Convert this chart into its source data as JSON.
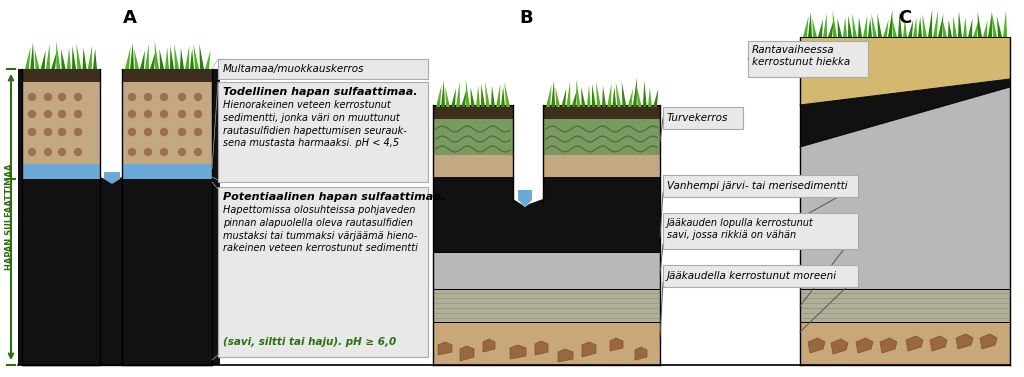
{
  "title_A": "A",
  "title_B": "B",
  "title_C": "C",
  "bg_color": "#ffffff",
  "label_hapan": "HAPAN SULFAATTIMAA",
  "labels": {
    "multamaa": "Multamaa/muokkauskerros",
    "todellinen_title": "Todellinen hapan sulfaattimaa.",
    "todellinen_body": "Hienorakeinen veteen kerrostunut\nsedimentti, jonka väri on muuttunut\nrautasulfidien hapettumisen seurauk-\nsena mustasta harmaaksi. pH < 4,5",
    "potentiaalinen_title": "Potentiaalinen hapan sulfaattimaa.",
    "potentiaalinen_body": "Hapettomissa olosuhteissa pohjaveden\npinnan alapuolella oleva rautasulfidien\nmustaksi tai tummaksi värjäämä hieno-\nrakeinen veteen kerrostunut sedimentti",
    "potentiaalinen_italic": "(savi, siltti tai haju). pH ≥ 6,0",
    "turvekerros": "Turvekerros",
    "rantavaiheessa": "Rantavaiheessa\nkerrostunut hiekka",
    "vanhempi": "Vanhempi järvi- tai merisedimentti",
    "jaakauden_lopulla": "Jääkauden lopulla kerrostunut\nsavi, jossa rikkiä on vähän",
    "jaakauden_moreeni": "Jääkaudella kerrostunut moreeni"
  },
  "colors": {
    "grass_green_light": "#4ab520",
    "grass_green_dark": "#2d8010",
    "topsoil_dark": "#3d2e1e",
    "topsoil_brown": "#c4a882",
    "topsoil_dots": "#9a7050",
    "grey_oxidized": "#a8a8a8",
    "black_sulfide": "#111111",
    "blue_water": "#6aaad8",
    "peat_green": "#7a9a60",
    "peat_line": "#4a6640",
    "sandy_yellow": "#d4b870",
    "moraine_brown": "#c8a878",
    "moraine_stone": "#9a6840",
    "clay_grey": "#b0b098",
    "older_sediment": "#b8b8b8",
    "label_bg": "#e8e8e8",
    "label_border": "#999999",
    "white": "#ffffff",
    "black": "#111111",
    "arrow_green": "#2d6e10"
  }
}
